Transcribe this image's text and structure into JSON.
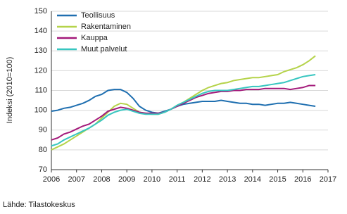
{
  "chart_data": {
    "type": "line",
    "y_label": "Indeksi (2010=100)",
    "source": "Lähde: Tilastokeskus",
    "x": [
      2006,
      2006.25,
      2006.5,
      2006.75,
      2007,
      2007.25,
      2007.5,
      2007.75,
      2008,
      2008.25,
      2008.5,
      2008.75,
      2009,
      2009.25,
      2009.5,
      2009.75,
      2010,
      2010.25,
      2010.5,
      2010.75,
      2011,
      2011.25,
      2011.5,
      2011.75,
      2012,
      2012.25,
      2012.5,
      2012.75,
      2013,
      2013.25,
      2013.5,
      2013.75,
      2014,
      2014.25,
      2014.5,
      2014.75,
      2015,
      2015.25,
      2015.5,
      2015.75,
      2016,
      2016.25,
      2016.5
    ],
    "series": [
      {
        "name": "Teollisuus",
        "color": "#1f6fb0",
        "values": [
          99.5,
          100,
          101,
          101.5,
          102.5,
          103.5,
          105,
          107,
          108,
          110,
          110.5,
          110.5,
          109,
          106,
          102,
          100,
          99,
          98.5,
          99.5,
          100.5,
          102,
          103,
          103.5,
          104,
          104.5,
          104.5,
          104.5,
          105,
          104.5,
          104,
          103.5,
          103.5,
          103,
          103,
          102.5,
          103,
          103.5,
          103.5,
          104,
          103.5,
          103,
          102.5,
          102
        ]
      },
      {
        "name": "Rakentaminen",
        "color": "#b5d34a",
        "values": [
          80,
          81.5,
          83,
          85,
          87,
          89,
          91,
          93,
          96,
          99,
          102,
          103.5,
          103,
          101,
          99,
          98.5,
          98,
          98,
          99,
          100.5,
          102.5,
          104,
          106,
          108,
          110,
          111.5,
          112.5,
          113.5,
          114,
          115,
          115.5,
          116,
          116.5,
          116.5,
          117,
          117.5,
          118,
          119.5,
          120.5,
          121.5,
          123,
          125,
          127.5
        ]
      },
      {
        "name": "Kauppa",
        "color": "#a3197a",
        "values": [
          85,
          86,
          88,
          89,
          90.5,
          92,
          93,
          95,
          97,
          99.5,
          100.5,
          101.5,
          101,
          100,
          99,
          98.5,
          98.5,
          98.5,
          99,
          100.5,
          102,
          103.5,
          105,
          106.5,
          107.5,
          108.5,
          109,
          109.5,
          109.5,
          110,
          110,
          110.5,
          110.5,
          110.5,
          111,
          111,
          111,
          111,
          110.5,
          111,
          111.5,
          112.5,
          112.5
        ]
      },
      {
        "name": "Muut palvelut",
        "color": "#37c6c0",
        "values": [
          82,
          83,
          85,
          86.5,
          88,
          89.5,
          91,
          93,
          95,
          97.5,
          99,
          100,
          100.5,
          99.5,
          98.5,
          98,
          98,
          98,
          99,
          100.5,
          102.5,
          104,
          105.5,
          107,
          108.5,
          109.5,
          110,
          110,
          110,
          110.5,
          111,
          111.5,
          112,
          112,
          112.5,
          113,
          113.5,
          114,
          115,
          116,
          117,
          117.5,
          118
        ]
      }
    ],
    "xlim": [
      2006,
      2017
    ],
    "xticks": [
      2006,
      2007,
      2008,
      2009,
      2010,
      2011,
      2012,
      2013,
      2014,
      2015,
      2016,
      2017
    ],
    "ylim": [
      70,
      150
    ],
    "yticks": [
      70,
      80,
      90,
      100,
      110,
      120,
      130,
      140,
      150
    ],
    "grid": true,
    "legend": "top-left"
  }
}
